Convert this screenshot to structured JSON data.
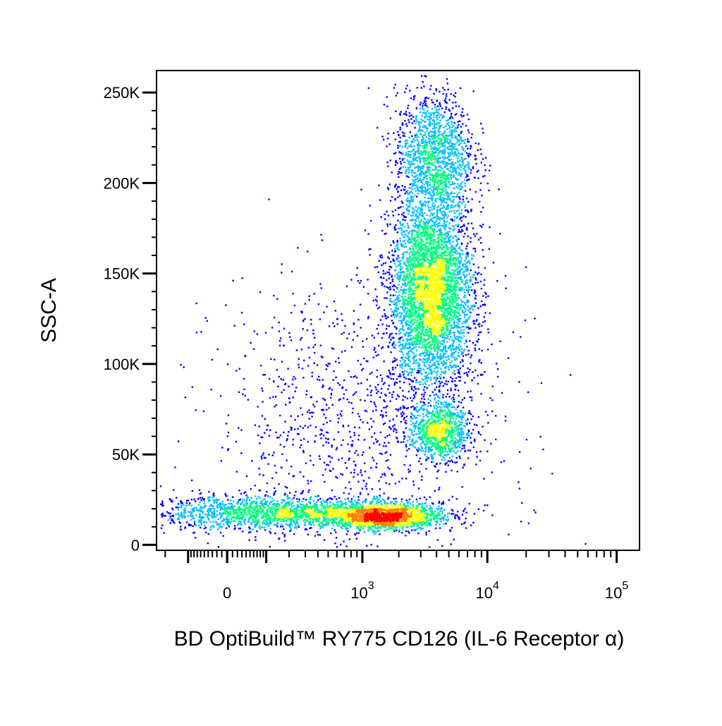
{
  "chart_data": {
    "type": "scatter",
    "subtype": "flow-cytometry-density-dot-plot",
    "xlabel": "BD OptiBuild™ RY775 CD126 (IL-6 Receptor α)",
    "ylabel": "SSC-A",
    "x_scale": "biexponential",
    "x_range": [
      -250,
      150000
    ],
    "x_ticks": [
      {
        "value": 0,
        "base": "0",
        "exp": ""
      },
      {
        "value": 1000,
        "base": "10",
        "exp": "3"
      },
      {
        "value": 10000,
        "base": "10",
        "exp": "4"
      },
      {
        "value": 100000,
        "base": "10",
        "exp": "5"
      }
    ],
    "y_range": [
      -3000,
      262144
    ],
    "y_ticks": [
      {
        "value": 0,
        "label": "0"
      },
      {
        "value": 50000,
        "label": "50K"
      },
      {
        "value": 100000,
        "label": "100K"
      },
      {
        "value": 150000,
        "label": "150K"
      },
      {
        "value": 200000,
        "label": "200K"
      },
      {
        "value": 250000,
        "label": "250K"
      }
    ],
    "grid": false,
    "legend": "none",
    "color_scale": [
      "#0000ff",
      "#00bfff",
      "#00ff80",
      "#ffff00",
      "#ff8000",
      "#ff0000"
    ],
    "populations": [
      {
        "x_center": 150,
        "x_spread": 0.55,
        "y_center": 18000,
        "y_spread": 4500,
        "share": 0.17
      },
      {
        "x_center": 1500,
        "x_spread": 0.22,
        "y_center": 16000,
        "y_spread": 3500,
        "share": 0.14
      },
      {
        "x_center": 3600,
        "x_spread": 0.16,
        "y_center": 140000,
        "y_spread": 27000,
        "share": 0.38
      },
      {
        "x_center": 4200,
        "x_spread": 0.12,
        "y_center": 63000,
        "y_spread": 8000,
        "share": 0.08
      },
      {
        "x_center": 3800,
        "x_spread": 0.15,
        "y_center": 215000,
        "y_spread": 18000,
        "share": 0.13
      },
      {
        "x_center": 900,
        "x_spread": 0.55,
        "y_center": 70000,
        "y_spread": 40000,
        "share": 0.1
      }
    ]
  }
}
